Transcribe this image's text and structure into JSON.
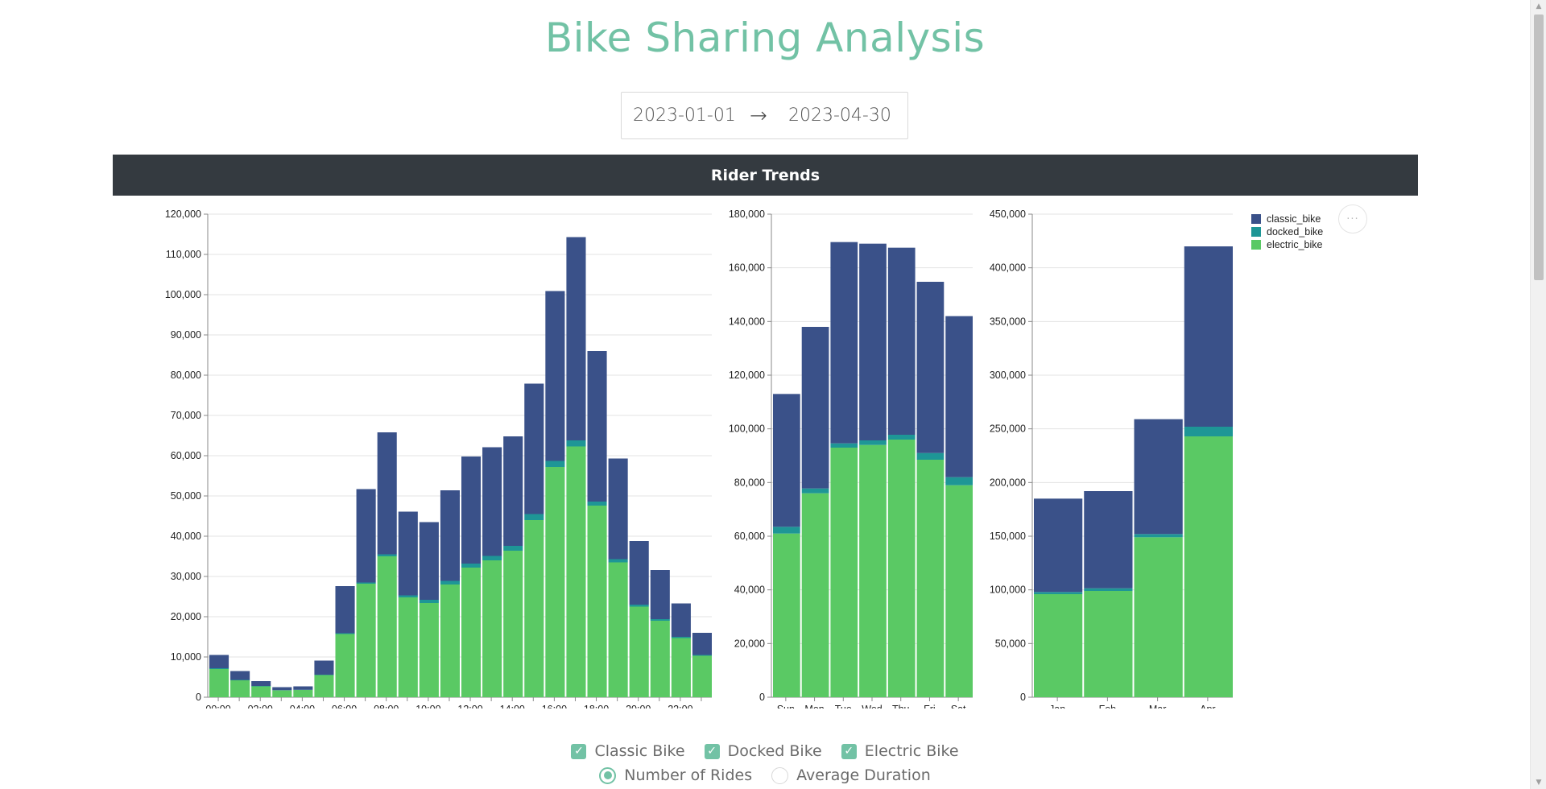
{
  "page": {
    "title": "Bike Sharing Analysis"
  },
  "date_range": {
    "start": "2023-01-01",
    "end": "2023-04-30",
    "arrow": "→"
  },
  "section": {
    "title": "Rider Trends"
  },
  "options_button": {
    "label": "···"
  },
  "colors": {
    "classic_bike": "#3a5189",
    "docked_bike": "#1e9696",
    "electric_bike": "#5ac964",
    "accent": "#72c2a5",
    "header_bg": "#343a40"
  },
  "filters": {
    "bike_types": [
      {
        "label": "Classic Bike",
        "checked": true
      },
      {
        "label": "Docked Bike",
        "checked": true
      },
      {
        "label": "Electric Bike",
        "checked": true
      }
    ],
    "metric": [
      {
        "label": "Number of Rides",
        "selected": true
      },
      {
        "label": "Average Duration",
        "selected": false
      }
    ]
  },
  "chart_data": [
    {
      "type": "bar",
      "stacked": true,
      "categories": [
        "00:00",
        "01:00",
        "02:00",
        "03:00",
        "04:00",
        "05:00",
        "06:00",
        "07:00",
        "08:00",
        "09:00",
        "10:00",
        "11:00",
        "12:00",
        "13:00",
        "14:00",
        "15:00",
        "16:00",
        "17:00",
        "18:00",
        "19:00",
        "20:00",
        "21:00",
        "22:00",
        "23:00"
      ],
      "tick_labels": [
        "00:00",
        "02:00",
        "04:00",
        "06:00",
        "08:00",
        "10:00",
        "12:00",
        "14:00",
        "16:00",
        "18:00",
        "20:00",
        "22:00"
      ],
      "ylim": [
        0,
        120000
      ],
      "yticks": [
        "0",
        "10,000",
        "20,000",
        "30,000",
        "40,000",
        "50,000",
        "60,000",
        "70,000",
        "80,000",
        "90,000",
        "100,000",
        "110,000",
        "120,000"
      ],
      "grid": true,
      "series": [
        {
          "name": "electric_bike",
          "values": [
            7000,
            4200,
            2700,
            1700,
            1800,
            5500,
            15700,
            28200,
            35000,
            24800,
            23400,
            28000,
            32200,
            34000,
            36400,
            44000,
            57200,
            62300,
            47600,
            33500,
            22500,
            19000,
            14700,
            10300
          ]
        },
        {
          "name": "docked_bike",
          "values": [
            200,
            100,
            100,
            50,
            50,
            100,
            200,
            300,
            500,
            500,
            800,
            900,
            1000,
            1100,
            1200,
            1500,
            1500,
            1500,
            1000,
            800,
            500,
            400,
            300,
            200
          ]
        },
        {
          "name": "classic_bike",
          "values": [
            3300,
            2200,
            1200,
            750,
            850,
            3500,
            11700,
            23200,
            30300,
            20800,
            19300,
            22500,
            26600,
            27000,
            27200,
            32400,
            42200,
            50500,
            37400,
            25000,
            15800,
            12200,
            8300,
            5500
          ]
        }
      ]
    },
    {
      "type": "bar",
      "stacked": true,
      "categories": [
        "Sun",
        "Mon",
        "Tue",
        "Wed",
        "Thu",
        "Fri",
        "Sat"
      ],
      "tick_labels": [
        "Sun",
        "Mon",
        "Tue",
        "Wed",
        "Thu",
        "Fri",
        "Sat"
      ],
      "ylim": [
        0,
        180000
      ],
      "yticks": [
        "0",
        "20,000",
        "40,000",
        "60,000",
        "80,000",
        "100,000",
        "120,000",
        "140,000",
        "160,000",
        "180,000"
      ],
      "grid": true,
      "series": [
        {
          "name": "electric_bike",
          "values": [
            61000,
            76000,
            93000,
            94000,
            96000,
            88500,
            79000
          ]
        },
        {
          "name": "docked_bike",
          "values": [
            2500,
            1800,
            1600,
            1700,
            1800,
            2500,
            3000
          ]
        },
        {
          "name": "classic_bike",
          "values": [
            49500,
            60200,
            75000,
            73300,
            69700,
            63800,
            60000
          ]
        }
      ]
    },
    {
      "type": "bar",
      "stacked": true,
      "categories": [
        "Jan",
        "Feb",
        "Mar",
        "Apr"
      ],
      "tick_labels": [
        "Jan",
        "Feb",
        "Mar",
        "Apr"
      ],
      "ylim": [
        0,
        450000
      ],
      "yticks": [
        "0",
        "50,000",
        "100,000",
        "150,000",
        "200,000",
        "250,000",
        "300,000",
        "350,000",
        "400,000",
        "450,000"
      ],
      "grid": true,
      "legend": {
        "position": "top-right",
        "entries": [
          "classic_bike",
          "docked_bike",
          "electric_bike"
        ]
      },
      "series": [
        {
          "name": "electric_bike",
          "values": [
            96000,
            99000,
            149000,
            243000
          ]
        },
        {
          "name": "docked_bike",
          "values": [
            2000,
            2500,
            3000,
            9000
          ]
        },
        {
          "name": "classic_bike",
          "values": [
            87000,
            90500,
            107000,
            168000
          ]
        }
      ]
    }
  ]
}
